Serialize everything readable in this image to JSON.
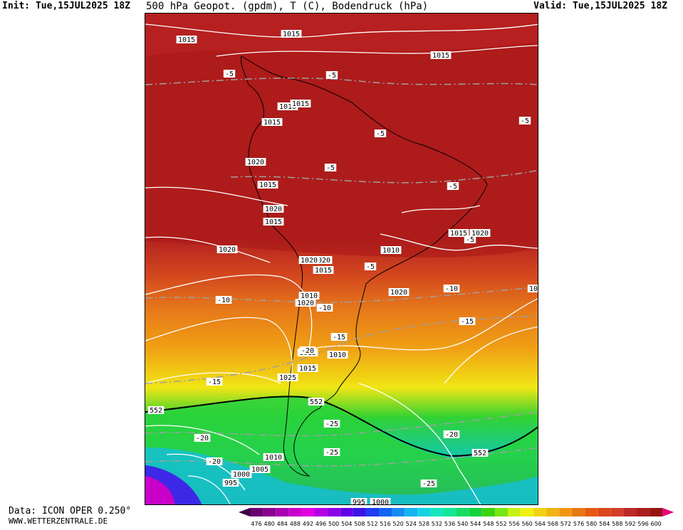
{
  "header": {
    "init_label": "Init: Tue,15JUL2025 18Z",
    "title": "500 hPa Geopot. (gpdm), T (C), Bodendruck (hPa)",
    "valid_label": "Valid: Tue,15JUL2025 18Z"
  },
  "footer": {
    "data_source": "Data: ICON OPER 0.250°",
    "website": "WWW.WETTERZENTRALE.DE"
  },
  "map": {
    "region": "South America",
    "pressure_labels": [
      "1015",
      "1015",
      "1015",
      "1010",
      "1015",
      "1015",
      "1020",
      "1015",
      "1020",
      "1015",
      "1020",
      "1015",
      "1020",
      "1020",
      "1015",
      "1010",
      "1020",
      "1010",
      "1015",
      "1020",
      "1025",
      "1010",
      "1015",
      "1010",
      "1005",
      "1000",
      "995",
      "995",
      "1000",
      "1020",
      "10"
    ],
    "temperature_labels": [
      "-5",
      "-5",
      "-5",
      "-5",
      "-5",
      "-5",
      "-5",
      "-5",
      "-10",
      "-10",
      "-10",
      "-15",
      "-15",
      "-15",
      "-20",
      "-20",
      "-20",
      "-20",
      "-25",
      "-25",
      "-25"
    ],
    "geopotential_labels": [
      "552",
      "552",
      "552"
    ]
  },
  "color_scale": {
    "values": [
      "476",
      "480",
      "484",
      "488",
      "492",
      "496",
      "500",
      "504",
      "508",
      "512",
      "516",
      "520",
      "524",
      "528",
      "532",
      "536",
      "540",
      "544",
      "548",
      "552",
      "556",
      "560",
      "564",
      "568",
      "572",
      "576",
      "580",
      "584",
      "588",
      "592",
      "596",
      "600"
    ],
    "colors": [
      "#6a0070",
      "#8a008f",
      "#aa00b0",
      "#c800cc",
      "#e000e0",
      "#b400e6",
      "#8c00e6",
      "#6400e6",
      "#3c14e6",
      "#1e3cf0",
      "#1464f0",
      "#148cf0",
      "#14b4f0",
      "#14d2e6",
      "#14e6be",
      "#14e696",
      "#14dc64",
      "#14d23c",
      "#3cd214",
      "#78e614",
      "#c8f014",
      "#f0f014",
      "#f0d214",
      "#f0b414",
      "#f09614",
      "#e67814",
      "#e65a14",
      "#dc461e",
      "#d23c28",
      "#be2828",
      "#aa1e1e",
      "#961414"
    ],
    "arrow_left_color": "#3c0046",
    "arrow_right_color": "#e60078"
  }
}
